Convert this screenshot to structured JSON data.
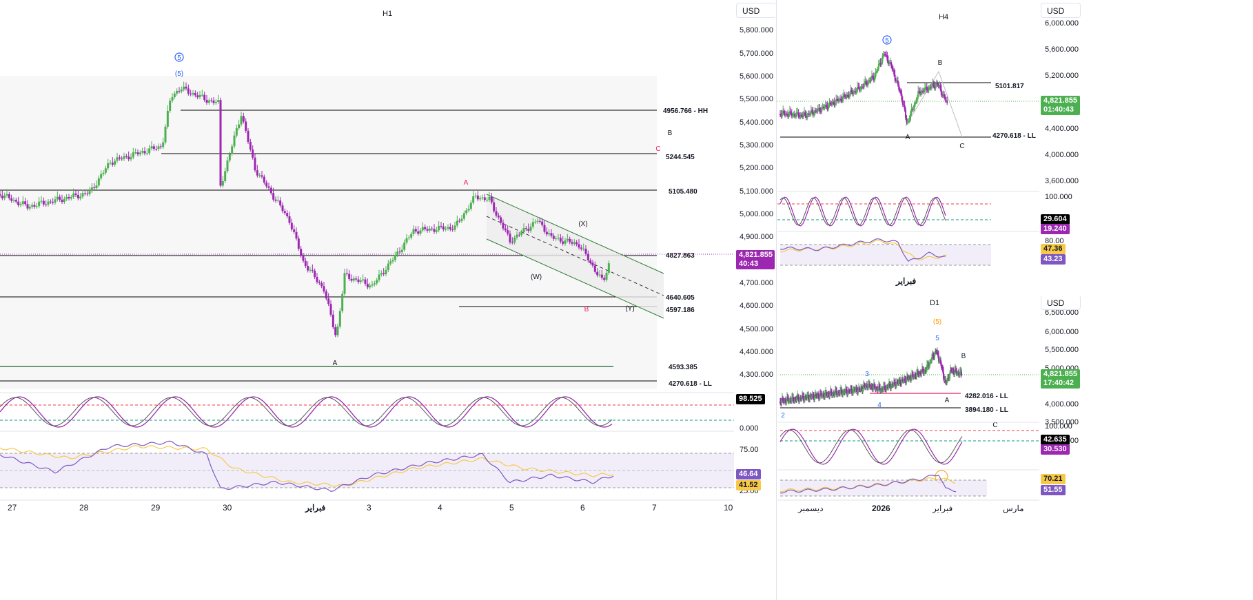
{
  "h1": {
    "title": "H1",
    "currency": "USD",
    "price_axis": [
      "5,800.000",
      "5,700.000",
      "5,600.000",
      "5,500.000",
      "5,400.000",
      "5,300.000",
      "5,200.000",
      "5,100.000",
      "5,000.000",
      "4,900.000",
      "4,700.000",
      "4,600.000",
      "4,500.000",
      "4,400.000",
      "4,300.000"
    ],
    "current_price": "4,821.855",
    "countdown": "40:43",
    "levels": [
      "4956.766 - HH",
      "5244.545",
      "5105.480",
      "4827.863",
      "4640.605",
      "4597.186",
      "4593.385",
      "4270.618 - LL"
    ],
    "wave_labels": {
      "five_circle": "5",
      "five_paren": "(5)",
      "b_top": "B",
      "c_top": "C",
      "a_mid": "A",
      "x": "(X)",
      "w": "(W)",
      "b_low": "B",
      "y": "(Y)",
      "a_low": "A"
    },
    "stoch": {
      "value": "98.525",
      "bottom": "0.000"
    },
    "rsi": {
      "top": "75.00",
      "bottom": "25.00",
      "value1": "46.64",
      "value2": "41.52"
    },
    "dates": [
      "27",
      "28",
      "29",
      "30",
      "فبراير",
      "3",
      "4",
      "5",
      "6",
      "7",
      "10"
    ]
  },
  "h4": {
    "title": "H4",
    "currency": "USD",
    "price_axis": [
      "6,000.000",
      "5,600.000",
      "5,200.000",
      "4,400.000",
      "4,000.000",
      "3,600.000"
    ],
    "current_price": "4,821.855",
    "countdown": "01:40:43",
    "levels": [
      "5101.817",
      "4270.618 - LL"
    ],
    "wave_labels": {
      "five_circle": "5",
      "b": "B",
      "a": "A",
      "c": "C"
    },
    "stoch": {
      "top": "100.000",
      "value1": "29.604",
      "value2": "19.240"
    },
    "rsi": {
      "top": "80.00",
      "value1": "47.36",
      "value2": "43.23"
    },
    "date": "فبراير"
  },
  "d1": {
    "title": "D1",
    "currency": "USD",
    "price_axis": [
      "6,500.000",
      "6,000.000",
      "5,500.000",
      "5,000.000",
      "4,000.000",
      "3,500.000",
      "3,000.000"
    ],
    "current_price": "4,821.855",
    "countdown": "17:40:42",
    "levels": [
      "4282.016 - LL",
      "3894.180 - LL"
    ],
    "wave_labels": {
      "five_paren": "(5)",
      "five": "5",
      "b": "B",
      "three": "3",
      "a": "A",
      "four": "4",
      "two": "2",
      "c": "C"
    },
    "stoch": {
      "top": "100.000",
      "value1": "42.635",
      "value2": "30.530"
    },
    "rsi": {
      "value1": "70.21",
      "value2": "51.55"
    },
    "dates": [
      "ديسمبر",
      "2026",
      "فبراير",
      "مارس"
    ]
  },
  "colors": {
    "bull": "#4caf50",
    "bear": "#9c27b0",
    "price_green": "#4caf50",
    "stoch_black": "#000000",
    "stoch_purple": "#9c27b0",
    "rsi_yellow": "#f7c948",
    "rsi_purple": "#7e57c2",
    "red_dash": "#f23645",
    "green_dash": "#089981",
    "channel": "#2e7d32"
  }
}
